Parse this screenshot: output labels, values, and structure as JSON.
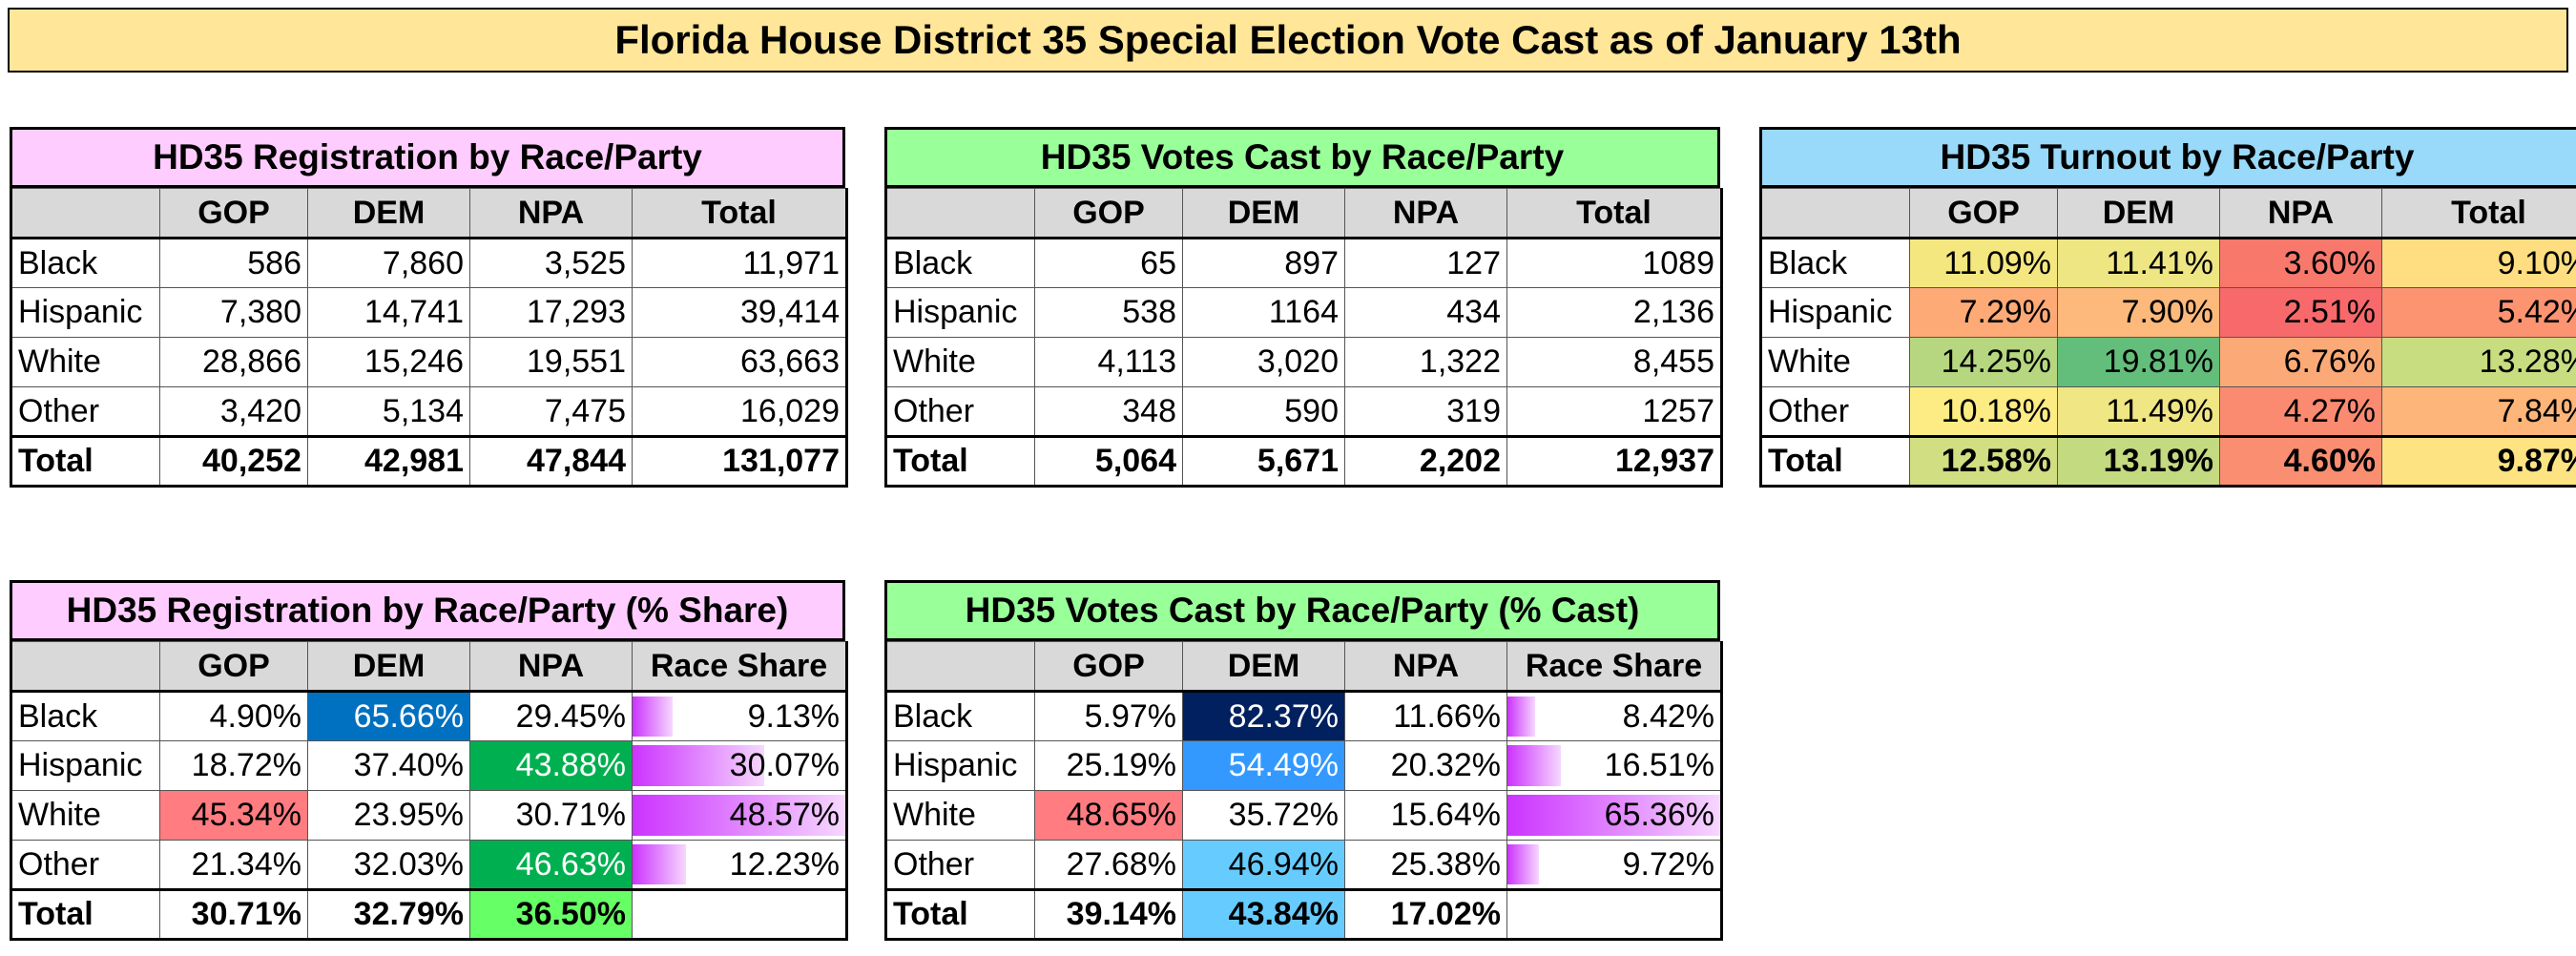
{
  "title": "Florida House District 35 Special Election Vote Cast as of January 13th",
  "colors": {
    "title_bg": "#FFE699",
    "pink_header": "#FFCCFF",
    "green_header": "#99FF99",
    "blue_header": "#99D9F9",
    "column_header_bg": "#D9D9D9",
    "race_share_bar": "#CC33FF"
  },
  "tables": {
    "registration": {
      "title": "HD35 Registration by Race/Party",
      "columns": [
        "",
        "GOP",
        "DEM",
        "NPA",
        "Total"
      ],
      "rows": [
        [
          "Black",
          "586",
          "7,860",
          "3,525",
          "11,971"
        ],
        [
          "Hispanic",
          "7,380",
          "14,741",
          "17,293",
          "39,414"
        ],
        [
          "White",
          "28,866",
          "15,246",
          "19,551",
          "63,663"
        ],
        [
          "Other",
          "3,420",
          "5,134",
          "7,475",
          "16,029"
        ],
        [
          "Total",
          "40,252",
          "42,981",
          "47,844",
          "131,077"
        ]
      ]
    },
    "votes_cast": {
      "title": "HD35 Votes Cast by Race/Party",
      "columns": [
        "",
        "GOP",
        "DEM",
        "NPA",
        "Total"
      ],
      "rows": [
        [
          "Black",
          "65",
          "897",
          "127",
          "1089"
        ],
        [
          "Hispanic",
          "538",
          "1164",
          "434",
          "2,136"
        ],
        [
          "White",
          "4,113",
          "3,020",
          "1,322",
          "8,455"
        ],
        [
          "Other",
          "348",
          "590",
          "319",
          "1257"
        ],
        [
          "Total",
          "5,064",
          "5,671",
          "2,202",
          "12,937"
        ]
      ]
    },
    "turnout": {
      "title": "HD35 Turnout by Race/Party",
      "columns": [
        "",
        "GOP",
        "DEM",
        "NPA",
        "Total"
      ],
      "rows": [
        [
          "Black",
          "11.09%",
          "11.41%",
          "3.60%",
          "9.10%"
        ],
        [
          "Hispanic",
          "7.29%",
          "7.90%",
          "2.51%",
          "5.42%"
        ],
        [
          "White",
          "14.25%",
          "19.81%",
          "6.76%",
          "13.28%"
        ],
        [
          "Other",
          "10.18%",
          "11.49%",
          "4.27%",
          "7.84%"
        ],
        [
          "Total",
          "12.58%",
          "13.19%",
          "4.60%",
          "9.87%"
        ]
      ],
      "cell_colors": [
        [
          "#F4E780",
          "#EEE683",
          "#F8786C",
          "#FEDE80"
        ],
        [
          "#FDAA77",
          "#FDB97B",
          "#F8696B",
          "#FC9472"
        ],
        [
          "#B6D77F",
          "#63BE7B",
          "#FBAA77",
          "#C8DC80"
        ],
        [
          "#FDEB84",
          "#F0E683",
          "#FA8B70",
          "#FDB57A"
        ],
        [
          "#D1DE81",
          "#C4DA80",
          "#FA8E71",
          "#FEE382"
        ]
      ]
    },
    "registration_share": {
      "title": "HD35 Registration by Race/Party (% Share)",
      "columns": [
        "",
        "GOP",
        "DEM",
        "NPA",
        "Race Share"
      ],
      "rows": [
        [
          "Black",
          "4.90%",
          "65.66%",
          "29.45%",
          "9.13%"
        ],
        [
          "Hispanic",
          "18.72%",
          "37.40%",
          "43.88%",
          "30.07%"
        ],
        [
          "White",
          "45.34%",
          "23.95%",
          "30.71%",
          "48.57%"
        ],
        [
          "Other",
          "21.34%",
          "32.03%",
          "46.63%",
          "12.23%"
        ],
        [
          "Total",
          "30.71%",
          "32.79%",
          "36.50%",
          ""
        ]
      ],
      "cell_colors": [
        [
          "",
          "#0070C0",
          "",
          ""
        ],
        [
          "",
          "",
          "#00B050",
          ""
        ],
        [
          "#FF7C80",
          "",
          "",
          ""
        ],
        [
          "",
          "",
          "#00B050",
          ""
        ],
        [
          "",
          "",
          "#66FF66",
          ""
        ]
      ],
      "text_colors": [
        [
          "",
          "#FFFFFF",
          "",
          ""
        ],
        [
          "",
          "",
          "#FFFFFF",
          ""
        ],
        [
          "",
          "",
          "",
          ""
        ],
        [
          "",
          "",
          "#FFFFFF",
          ""
        ],
        [
          "",
          "",
          "",
          ""
        ]
      ],
      "race_share_fill": [
        9.13,
        30.07,
        48.57,
        12.23
      ]
    },
    "votes_cast_share": {
      "title": "HD35 Votes Cast by Race/Party (% Cast)",
      "columns": [
        "",
        "GOP",
        "DEM",
        "NPA",
        "Race Share"
      ],
      "rows": [
        [
          "Black",
          "5.97%",
          "82.37%",
          "11.66%",
          "8.42%"
        ],
        [
          "Hispanic",
          "25.19%",
          "54.49%",
          "20.32%",
          "16.51%"
        ],
        [
          "White",
          "48.65%",
          "35.72%",
          "15.64%",
          "65.36%"
        ],
        [
          "Other",
          "27.68%",
          "46.94%",
          "25.38%",
          "9.72%"
        ],
        [
          "Total",
          "39.14%",
          "43.84%",
          "17.02%",
          ""
        ]
      ],
      "cell_colors": [
        [
          "",
          "#002060",
          "",
          ""
        ],
        [
          "",
          "#3399FF",
          "",
          ""
        ],
        [
          "#FF7C80",
          "",
          "",
          ""
        ],
        [
          "",
          "#66CCFF",
          "",
          ""
        ],
        [
          "",
          "#66CCFF",
          "",
          ""
        ]
      ],
      "text_colors": [
        [
          "",
          "#FFFFFF",
          "",
          ""
        ],
        [
          "",
          "#FFFFFF",
          "",
          ""
        ],
        [
          "",
          "",
          "",
          ""
        ],
        [
          "",
          "",
          "",
          ""
        ],
        [
          "",
          "",
          "",
          ""
        ]
      ],
      "race_share_fill": [
        8.42,
        16.51,
        65.36,
        9.72
      ]
    }
  }
}
